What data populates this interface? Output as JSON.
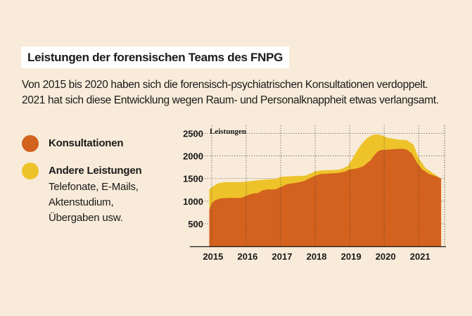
{
  "title": "Leistungen der forensischen Teams des FNPG",
  "subtitle_lines": [
    "Von 2015 bis 2020 haben sich die forensisch-psychiatrischen Konsultationen verdoppelt.",
    "2021 hat sich diese Entwicklung wegen Raum- und Personalknappheit etwas verlangsamt."
  ],
  "legend": [
    {
      "label": "Konsultationen",
      "color": "#d2621e"
    },
    {
      "label": "Andere Leistungen",
      "color": "#eec32a",
      "description_lines": [
        "Telefonate, E-Mails,",
        "Aktenstudium,",
        "Übergaben usw."
      ]
    }
  ],
  "chart_data": {
    "type": "area",
    "stacked": true,
    "ylabel": "Leistungen",
    "ylim": [
      0,
      2600
    ],
    "yticks": [
      500,
      1000,
      1500,
      2000,
      2500
    ],
    "xlim": [
      2014.9,
      2021.75
    ],
    "x_tick_labels": [
      {
        "year": 2015,
        "label": "2015"
      },
      {
        "year": 2016,
        "label": "2016"
      },
      {
        "year": 2017,
        "label": "2017"
      },
      {
        "year": 2018,
        "label": "2018"
      },
      {
        "year": 2019,
        "label": "2019"
      },
      {
        "year": 2020,
        "label": "2020"
      },
      {
        "year": 2021,
        "label": "2021"
      }
    ],
    "series": [
      {
        "name": "Konsultationen",
        "color": "#d2621e",
        "points": [
          [
            2014.93,
            800
          ],
          [
            2015.0,
            950
          ],
          [
            2015.1,
            1020
          ],
          [
            2015.25,
            1060
          ],
          [
            2015.5,
            1070
          ],
          [
            2015.85,
            1070
          ],
          [
            2016.05,
            1130
          ],
          [
            2016.2,
            1170
          ],
          [
            2016.35,
            1180
          ],
          [
            2016.45,
            1230
          ],
          [
            2016.6,
            1260
          ],
          [
            2016.85,
            1260
          ],
          [
            2017.0,
            1310
          ],
          [
            2017.2,
            1380
          ],
          [
            2017.5,
            1410
          ],
          [
            2017.7,
            1450
          ],
          [
            2017.85,
            1510
          ],
          [
            2018.0,
            1560
          ],
          [
            2018.15,
            1600
          ],
          [
            2018.4,
            1610
          ],
          [
            2018.65,
            1620
          ],
          [
            2018.85,
            1650
          ],
          [
            2019.0,
            1700
          ],
          [
            2019.2,
            1720
          ],
          [
            2019.4,
            1770
          ],
          [
            2019.5,
            1840
          ],
          [
            2019.6,
            1900
          ],
          [
            2019.7,
            2000
          ],
          [
            2019.8,
            2090
          ],
          [
            2019.9,
            2130
          ],
          [
            2020.1,
            2140
          ],
          [
            2020.3,
            2150
          ],
          [
            2020.5,
            2160
          ],
          [
            2020.65,
            2140
          ],
          [
            2020.8,
            2060
          ],
          [
            2020.95,
            1850
          ],
          [
            2021.1,
            1700
          ],
          [
            2021.3,
            1600
          ],
          [
            2021.5,
            1550
          ],
          [
            2021.65,
            1500
          ]
        ]
      },
      {
        "name": "Andere Leistungen",
        "color": "#eec32a",
        "points": [
          [
            2014.93,
            1250
          ],
          [
            2015.0,
            1310
          ],
          [
            2015.2,
            1400
          ],
          [
            2015.4,
            1420
          ],
          [
            2015.85,
            1420
          ],
          [
            2016.0,
            1430
          ],
          [
            2016.3,
            1460
          ],
          [
            2016.6,
            1480
          ],
          [
            2016.85,
            1490
          ],
          [
            2017.0,
            1540
          ],
          [
            2017.3,
            1550
          ],
          [
            2017.7,
            1560
          ],
          [
            2017.9,
            1620
          ],
          [
            2018.0,
            1660
          ],
          [
            2018.2,
            1680
          ],
          [
            2018.65,
            1690
          ],
          [
            2018.8,
            1720
          ],
          [
            2018.95,
            1780
          ],
          [
            2019.05,
            1900
          ],
          [
            2019.2,
            2100
          ],
          [
            2019.35,
            2270
          ],
          [
            2019.5,
            2390
          ],
          [
            2019.65,
            2460
          ],
          [
            2019.8,
            2480
          ],
          [
            2019.95,
            2450
          ],
          [
            2020.1,
            2400
          ],
          [
            2020.4,
            2360
          ],
          [
            2020.65,
            2350
          ],
          [
            2020.85,
            2250
          ],
          [
            2021.0,
            1950
          ],
          [
            2021.2,
            1730
          ],
          [
            2021.45,
            1600
          ],
          [
            2021.65,
            1500
          ]
        ]
      }
    ]
  }
}
